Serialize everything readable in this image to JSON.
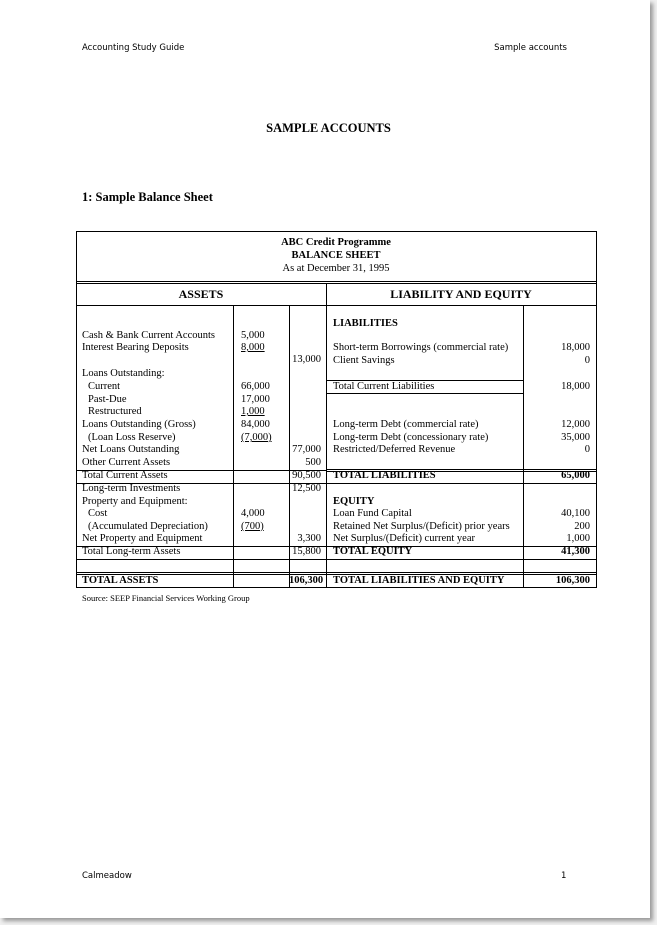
{
  "header": {
    "left": "Accounting Study Guide",
    "right": "Sample accounts"
  },
  "footer": {
    "left": "Calmeadow",
    "page_number": "1"
  },
  "title": "SAMPLE ACCOUNTS",
  "section": "1:  Sample Balance Sheet",
  "table": {
    "org": "ABC Credit Programme",
    "name": "BALANCE  SHEET",
    "date": "As at December 31, 1995",
    "assets_header": "ASSETS",
    "liab_header": "LIABILITY AND EQUITY",
    "assets": [
      {
        "label": "Cash & Bank Current Accounts",
        "c1": "5,000"
      },
      {
        "label": "Interest Bearing Deposits",
        "c1": "8,000",
        "u": true
      },
      {
        "label": "",
        "c2": "13,000"
      },
      {
        "label": "Loans Outstanding:"
      },
      {
        "label": "Current",
        "indent": true,
        "c1": "66,000"
      },
      {
        "label": "Past-Due",
        "indent": true,
        "c1": "17,000"
      },
      {
        "label": "Restructured",
        "indent": true,
        "c1": "1,000",
        "u": true
      },
      {
        "label": "Loans Outstanding (Gross)",
        "c1": "84,000"
      },
      {
        "label": "(Loan Loss Reserve)",
        "indent": true,
        "c1": "(7,000)",
        "u": true
      },
      {
        "label": "Net Loans Outstanding",
        "c2": "77,000"
      },
      {
        "label": "Other Current Assets",
        "c2": "500"
      },
      {
        "label": "Total Current Assets",
        "c2": "90,500"
      },
      {
        "label": "Long-term Investments",
        "c2": "12,500"
      },
      {
        "label": "Property and Equipment:"
      },
      {
        "label": "Cost",
        "indent": true,
        "c1": "4,000"
      },
      {
        "label": "(Accumulated Depreciation)",
        "indent": true,
        "c1": "(700)",
        "u": true
      },
      {
        "label": "Net Property and Equipment",
        "c2": "3,300"
      },
      {
        "label": "Total Long-term Assets",
        "c2": "15,800"
      },
      {
        "label": "TOTAL ASSETS",
        "c2": "106,300",
        "bold": true
      }
    ],
    "liabilities": [
      {
        "label": "LIABILITIES",
        "bold": true
      },
      {
        "label": "Short-term Borrowings (commercial rate)",
        "value": "18,000"
      },
      {
        "label": "Client Savings",
        "value": "0"
      },
      {
        "label": "Total Current Liabilities",
        "value": "18,000"
      },
      {
        "label": "Long-term Debt (commercial rate)",
        "value": "12,000"
      },
      {
        "label": "Long-term Debt (concessionary rate)",
        "value": "35,000"
      },
      {
        "label": "Restricted/Deferred Revenue",
        "value": "0"
      },
      {
        "label": "TOTAL LIABILITIES",
        "value": "65,000",
        "bold": true
      },
      {
        "label": "EQUITY",
        "bold": true
      },
      {
        "label": "Loan Fund Capital",
        "value": "40,100"
      },
      {
        "label": "Retained Net Surplus/(Deficit) prior years",
        "value": "200"
      },
      {
        "label": "Net Surplus/(Deficit) current year",
        "value": "1,000"
      },
      {
        "label": "TOTAL EQUITY",
        "value": "41,300",
        "bold": true
      },
      {
        "label": "TOTAL LIABILITIES AND EQUITY",
        "value": "106,300",
        "bold": true
      }
    ]
  },
  "source": "Source:  SEEP Financial Services Working Group"
}
